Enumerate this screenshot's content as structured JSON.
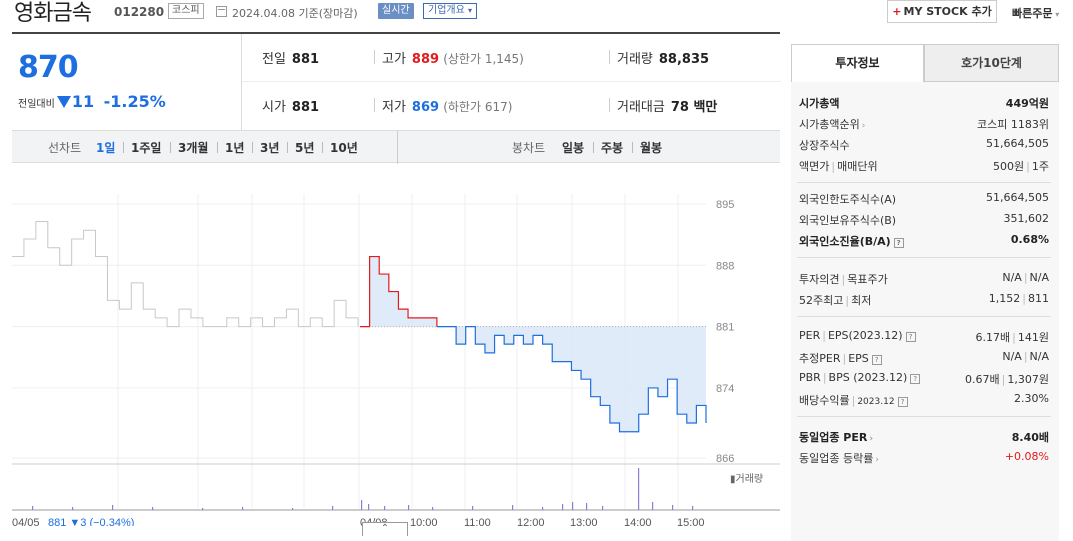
{
  "header": {
    "stock_name": "영화금속",
    "stock_code": "012280",
    "market": "코스피",
    "date_text": "2024.04.08 기준(장마감)",
    "realtime": "실시간",
    "overview": "기업개요",
    "my_stock": "MY STOCK 추가",
    "quick_order": "빠른주문"
  },
  "price": {
    "current": "870",
    "change_label": "전일대비",
    "change": "11",
    "change_pct": "-1.25%"
  },
  "stats": {
    "prev_close_label": "전일",
    "prev_close": "881",
    "high_label": "고가",
    "high": "889",
    "upper_limit": "(상한가 1,145)",
    "volume_label": "거래량",
    "volume": "88,835",
    "open_label": "시가",
    "open": "881",
    "low_label": "저가",
    "low": "869",
    "lower_limit": "(하한가 617)",
    "amount_label": "거래대금",
    "amount": "78 백만"
  },
  "chart_tabs": {
    "line_label": "선차트",
    "line_periods": [
      "1일",
      "1주일",
      "3개월",
      "1년",
      "3년",
      "5년",
      "10년"
    ],
    "candle_label": "봉차트",
    "candle_periods": [
      "일봉",
      "주봉",
      "월봉"
    ]
  },
  "chart_data": {
    "type": "line",
    "y_ticks": [
      "895",
      "888",
      "881",
      "874",
      "866"
    ],
    "ylim": [
      866,
      895
    ],
    "baseline": 881,
    "volume_label": "거래량",
    "x_labels": [
      "04/05",
      "04/08",
      "10:00",
      "11:00",
      "12:00",
      "13:00",
      "14:00",
      "15:00"
    ],
    "prev_day_note": "881 ▼3 (−0.34%)",
    "prev_day": [
      889,
      891,
      893,
      890,
      888,
      891,
      892,
      889,
      884,
      883,
      886,
      883,
      882,
      881,
      883,
      882,
      881,
      881,
      882,
      881,
      882,
      881,
      882,
      883,
      881,
      882,
      881,
      884,
      882,
      881
    ],
    "today": [
      881,
      889,
      887,
      885,
      883,
      882,
      882,
      882,
      881,
      881,
      879,
      881,
      879,
      878,
      880,
      879,
      880,
      879,
      880,
      879,
      877,
      877,
      876,
      875,
      873,
      872,
      870,
      869,
      869,
      871,
      874,
      873,
      875,
      871,
      870,
      872,
      870
    ]
  },
  "invest": {
    "tab1": "투자정보",
    "tab2": "호가10단계",
    "sec1": [
      {
        "k": "시가총액",
        "v": "449억원"
      },
      {
        "k": "시가총액순위",
        "v": "코스피 1183위"
      },
      {
        "k": "상장주식수",
        "v": "51,664,505"
      },
      {
        "k": "액면가",
        "k2": "매매단위",
        "v": "500원",
        "v2": "1주"
      }
    ],
    "sec2": [
      {
        "k": "외국인한도주식수(A)",
        "v": "51,664,505"
      },
      {
        "k": "외국인보유주식수(B)",
        "v": "351,602"
      },
      {
        "k": "외국인소진율(B/A)",
        "v": "0.68%"
      }
    ],
    "sec3": [
      {
        "k": "투자의견",
        "k2": "목표주가",
        "v": "N/A",
        "v2": "N/A"
      },
      {
        "k": "52주최고",
        "k2": "최저",
        "v": "1,152",
        "v2": "811"
      }
    ],
    "sec4": [
      {
        "k": "PER",
        "k2": "EPS(2023.12)",
        "v": "6.17배",
        "v2": "141원"
      },
      {
        "k": "추정PER",
        "k2": "EPS",
        "v": "N/A",
        "v2": "N/A"
      },
      {
        "k": "PBR",
        "k2": "BPS (2023.12)",
        "v": "0.67배",
        "v2": "1,307원"
      },
      {
        "k": "배당수익률",
        "k2": "2023.12",
        "v": "2.30%"
      }
    ],
    "sec5": [
      {
        "k": "동일업종 PER",
        "v": "8.40배"
      },
      {
        "k": "동일업종 등락률",
        "v": "+0.08%"
      }
    ]
  },
  "colors": {
    "up": "#e21b1b",
    "down": "#1d6fe0",
    "line_prev": "#c8c8c8"
  }
}
